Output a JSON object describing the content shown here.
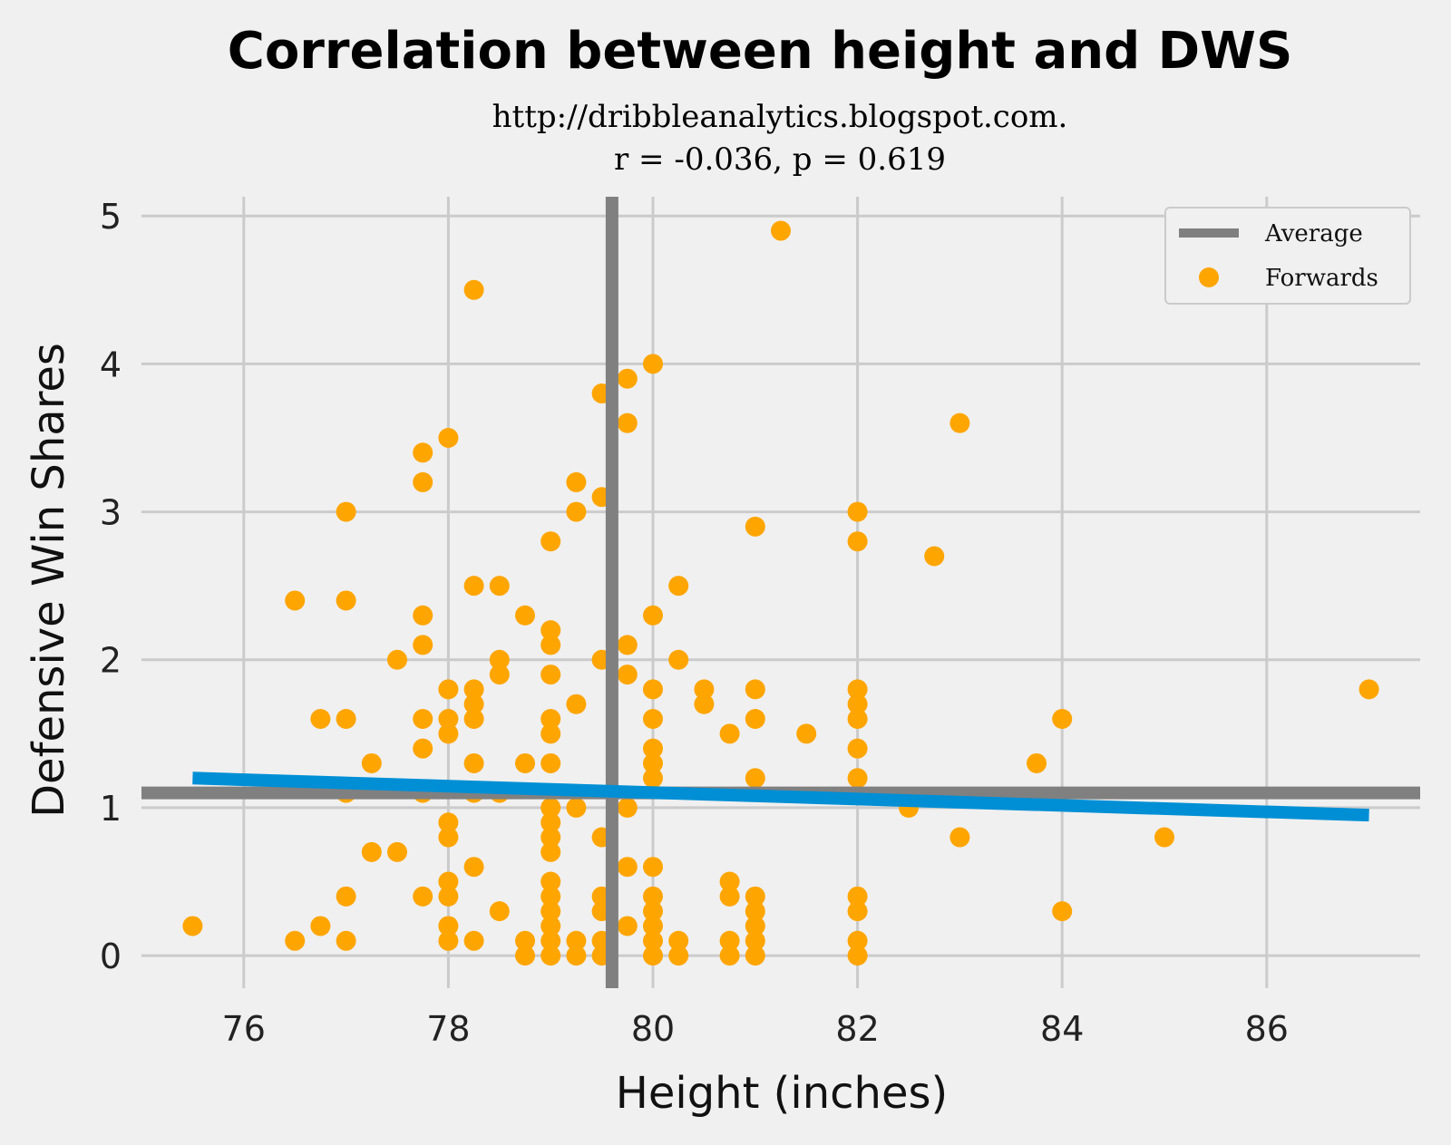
{
  "chart_data": {
    "type": "scatter",
    "title": "Correlation between height and DWS",
    "subtitle_lines": [
      "http://dribbleanalytics.blogspot.com.",
      "r = -0.036, p = 0.619"
    ],
    "xlabel": "Height (inches)",
    "ylabel": "Defensive Win Shares",
    "xlim": [
      75,
      87.5
    ],
    "ylim": [
      -0.22,
      5.13
    ],
    "xticks": [
      "76",
      "78",
      "80",
      "82",
      "84",
      "86"
    ],
    "yticks": [
      "0",
      "1",
      "2",
      "3",
      "4",
      "5"
    ],
    "grid": true,
    "legend": {
      "placement": "top-right",
      "entries": [
        "Average",
        "Forwards"
      ]
    },
    "colors": {
      "points": "#ffa500",
      "average": "#808080",
      "fit": "#008fd5",
      "grid": "#cbcbcb",
      "background": "#f0f0f0"
    },
    "average": {
      "x": 79.6,
      "y": 1.1
    },
    "fit_line": {
      "x": [
        75.5,
        87
      ],
      "y": [
        1.2,
        0.95
      ]
    },
    "series": [
      {
        "name": "Forwards",
        "points": {
          "75.5": [
            0.2
          ],
          "76.5": [
            2.4,
            0.1
          ],
          "76.75": [
            1.6,
            0.2
          ],
          "77": [
            3.0,
            2.4,
            1.6,
            1.1,
            0.4,
            0.1
          ],
          "77.25": [
            1.3,
            0.7
          ],
          "77.5": [
            2.0,
            0.7
          ],
          "77.75": [
            3.4,
            3.2,
            2.3,
            2.1,
            1.6,
            1.4,
            1.1,
            0.4
          ],
          "78": [
            3.5,
            1.8,
            1.6,
            1.5,
            0.9,
            0.8,
            0.5,
            0.4,
            0.2,
            0.1
          ],
          "78.25": [
            4.5,
            2.5,
            1.8,
            1.7,
            1.6,
            1.3,
            1.1,
            0.6,
            0.1
          ],
          "78.5": [
            2.5,
            2.0,
            1.9,
            1.1,
            0.3
          ],
          "78.75": [
            2.3,
            1.3,
            0.1,
            0.0
          ],
          "79": [
            2.8,
            2.2,
            2.1,
            1.9,
            1.6,
            1.5,
            1.3,
            1.0,
            0.9,
            0.8,
            0.7,
            0.5,
            0.4,
            0.3,
            0.2,
            0.1,
            0.0
          ],
          "79.25": [
            3.2,
            3.0,
            1.7,
            1.0,
            0.1,
            0.0
          ],
          "79.5": [
            3.8,
            3.1,
            2.0,
            0.8,
            0.4,
            0.3,
            0.1,
            0.0
          ],
          "79.75": [
            3.9,
            3.6,
            2.1,
            1.9,
            1.0,
            0.6,
            0.2
          ],
          "80": [
            4.0,
            2.3,
            1.8,
            1.6,
            1.4,
            1.3,
            1.2,
            0.6,
            0.4,
            0.3,
            0.2,
            0.1,
            0.0
          ],
          "80.25": [
            2.5,
            2.0,
            0.1,
            0.0
          ],
          "80.5": [
            1.8,
            1.7
          ],
          "80.75": [
            1.5,
            0.5,
            0.4,
            0.1,
            0.0
          ],
          "81": [
            2.9,
            1.8,
            1.6,
            1.2,
            0.4,
            0.3,
            0.2,
            0.1,
            0.0
          ],
          "81.25": [
            4.9
          ],
          "81.5": [
            1.5
          ],
          "82": [
            3.0,
            2.8,
            1.8,
            1.7,
            1.6,
            1.4,
            1.2,
            0.4,
            0.3,
            0.1,
            0.0
          ],
          "82.5": [
            1.0
          ],
          "82.75": [
            2.7
          ],
          "83": [
            3.6,
            0.8
          ],
          "83.75": [
            1.3
          ],
          "84": [
            1.6,
            0.3
          ],
          "85": [
            0.8
          ],
          "87": [
            1.8
          ]
        }
      }
    ]
  }
}
